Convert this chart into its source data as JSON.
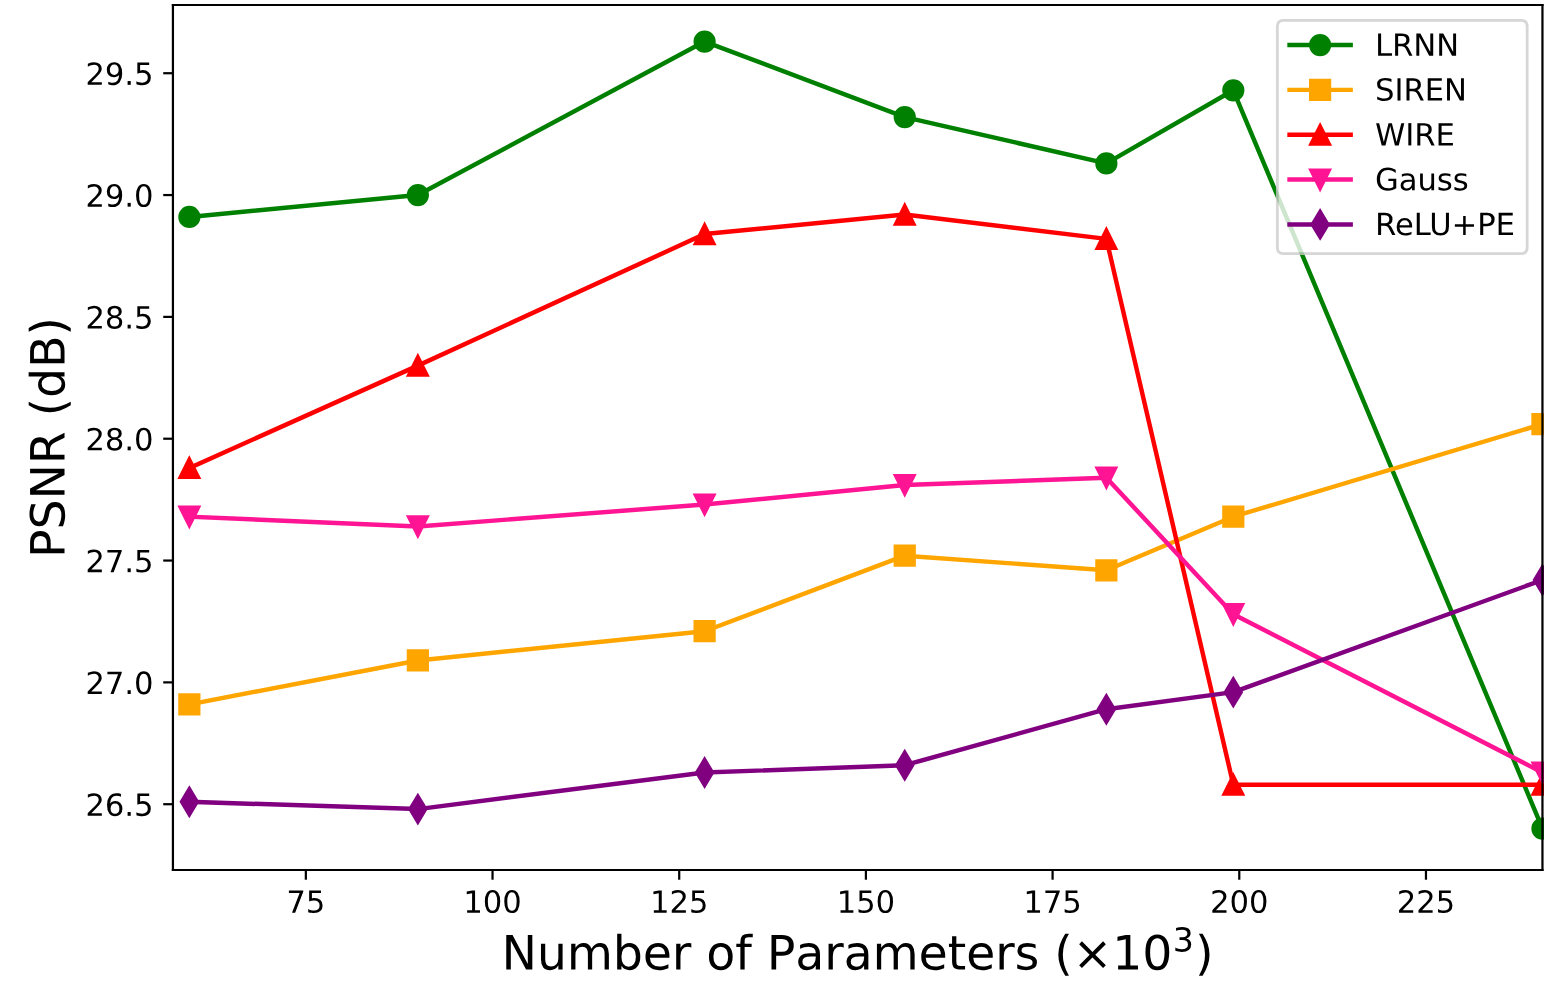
{
  "chart_data": {
    "type": "line",
    "xlabel": "Number of Parameters (×10$^{3}$)",
    "ylabel": "PSNR (dB)",
    "x": [
      59.4,
      90,
      128.4,
      155.2,
      182.2,
      199.2,
      240.6
    ],
    "series": [
      {
        "name": "LRNN",
        "color": "#008000",
        "marker": "circle",
        "values": [
          28.91,
          29.0,
          29.63,
          29.32,
          29.13,
          29.43,
          26.4
        ]
      },
      {
        "name": "SIREN",
        "color": "#ffa500",
        "marker": "square",
        "values": [
          26.91,
          27.09,
          27.21,
          27.52,
          27.46,
          27.68,
          28.06
        ]
      },
      {
        "name": "WIRE",
        "color": "#ff0000",
        "marker": "triangle",
        "values": [
          27.88,
          28.3,
          28.84,
          28.92,
          28.82,
          26.58,
          26.58
        ]
      },
      {
        "name": "Gauss",
        "color": "#ff1493",
        "marker": "triangle_down",
        "values": [
          27.68,
          27.64,
          27.73,
          27.81,
          27.84,
          27.28,
          26.63
        ]
      },
      {
        "name": "ReLU+PE",
        "color": "#800080",
        "marker": "diamond",
        "values": [
          26.51,
          26.48,
          26.63,
          26.66,
          26.89,
          26.96,
          27.42
        ]
      }
    ],
    "xlim": [
      57.2,
      240.6
    ],
    "ylim": [
      26.23,
      29.78
    ],
    "xticks": [
      75,
      100,
      125,
      150,
      175,
      200,
      225
    ],
    "yticks": [
      26.5,
      {
        "value": 27,
        "label": "27.0"
      },
      27.5,
      {
        "value": 28,
        "label": "28.0"
      },
      28.5,
      {
        "value": 29,
        "label": "29.0"
      },
      29.5
    ],
    "grid": false,
    "legend": "top right",
    "line_style": "solid"
  }
}
